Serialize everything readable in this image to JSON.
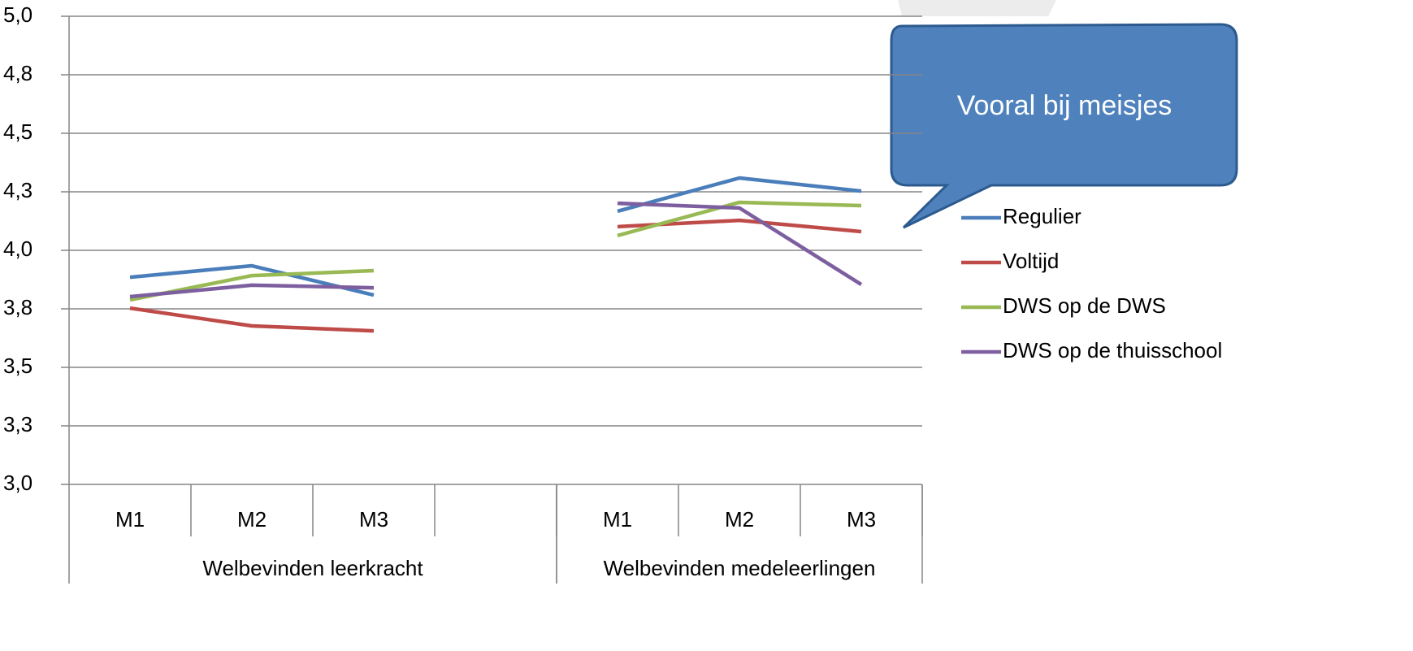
{
  "chart_data": {
    "type": "line",
    "annotation": "Vooral bij meisjes",
    "categories": [
      "M1",
      "M2",
      "M3",
      null,
      "M1",
      "M2",
      "M3"
    ],
    "category_groups": [
      "Welbevinden leerkracht",
      "Welbevinden medeleerlingen"
    ],
    "series": [
      {
        "name": "Regulier",
        "color": "#4a7ebb",
        "values": [
          3.885,
          3.934,
          3.809,
          null,
          4.167,
          4.309,
          4.253
        ]
      },
      {
        "name": "Voltijd",
        "color": "#be4b48",
        "values": [
          3.753,
          3.677,
          3.656,
          null,
          4.101,
          4.128,
          4.08
        ]
      },
      {
        "name": "DWS op de DWS",
        "color": "#98b954",
        "values": [
          3.788,
          3.892,
          3.913,
          null,
          4.063,
          4.205,
          4.191
        ]
      },
      {
        "name": "DWS op de thuisschool",
        "color": "#7d5fa0",
        "values": [
          3.802,
          3.851,
          3.84,
          null,
          4.201,
          4.181,
          3.854
        ]
      }
    ],
    "ylim": [
      3.0,
      5.0
    ],
    "yticks": [
      {
        "value": 3.0,
        "label": "3,0"
      },
      {
        "value": 3.25,
        "label": "3,3"
      },
      {
        "value": 3.5,
        "label": "3,5"
      },
      {
        "value": 3.75,
        "label": "3,8"
      },
      {
        "value": 4.0,
        "label": "4,0"
      },
      {
        "value": 4.25,
        "label": "4,3"
      },
      {
        "value": 4.5,
        "label": "4,5"
      },
      {
        "value": 4.75,
        "label": "4,8"
      },
      {
        "value": 5.0,
        "label": "5,0"
      }
    ],
    "grid": true
  }
}
